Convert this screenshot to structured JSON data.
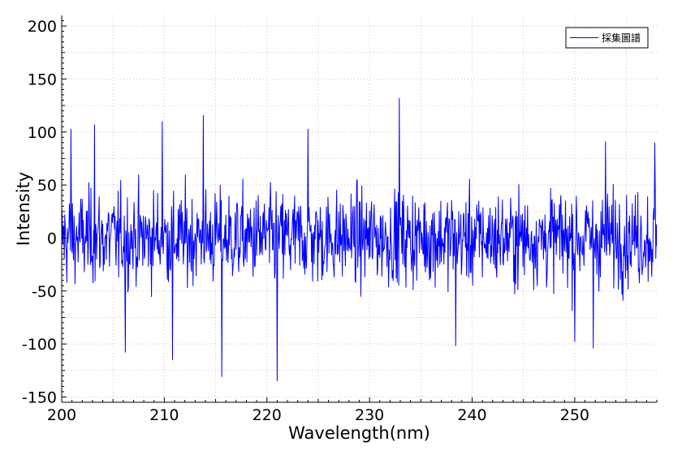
{
  "chart_data": {
    "type": "line",
    "xlabel": "Wavelength(nm)",
    "ylabel": "Intensity",
    "xlim": [
      200,
      258
    ],
    "ylim": [
      -155,
      210
    ],
    "xticks": [
      200,
      210,
      220,
      230,
      240,
      250
    ],
    "yticks": [
      -150,
      -100,
      -50,
      0,
      50,
      100,
      150,
      200
    ],
    "xtick_labels": [
      "200",
      "210",
      "220",
      "230",
      "240",
      "250"
    ],
    "ytick_labels": [
      "-150",
      "-100",
      "-50",
      "0",
      "50",
      "100",
      "150",
      "200"
    ],
    "grid": true,
    "legend_position": "top-right",
    "series": [
      {
        "name": "採集圖譜",
        "color": "#0000ff",
        "x_start": 200,
        "x_step": 0.05,
        "noise": {
          "mean": 0,
          "std": 35,
          "min": -135,
          "max": 132
        }
      }
    ],
    "annotated_points": [
      {
        "x": 200.9,
        "y": 103
      },
      {
        "x": 203.2,
        "y": 107
      },
      {
        "x": 206.2,
        "y": -108
      },
      {
        "x": 209.8,
        "y": 110
      },
      {
        "x": 210.8,
        "y": -115
      },
      {
        "x": 213.8,
        "y": 116
      },
      {
        "x": 215.6,
        "y": -131
      },
      {
        "x": 221.0,
        "y": -135
      },
      {
        "x": 224.0,
        "y": 103
      },
      {
        "x": 232.9,
        "y": 132
      },
      {
        "x": 238.4,
        "y": -102
      },
      {
        "x": 250.0,
        "y": -98
      },
      {
        "x": 251.8,
        "y": -104
      },
      {
        "x": 253.0,
        "y": 91
      },
      {
        "x": 257.8,
        "y": 90
      }
    ]
  }
}
